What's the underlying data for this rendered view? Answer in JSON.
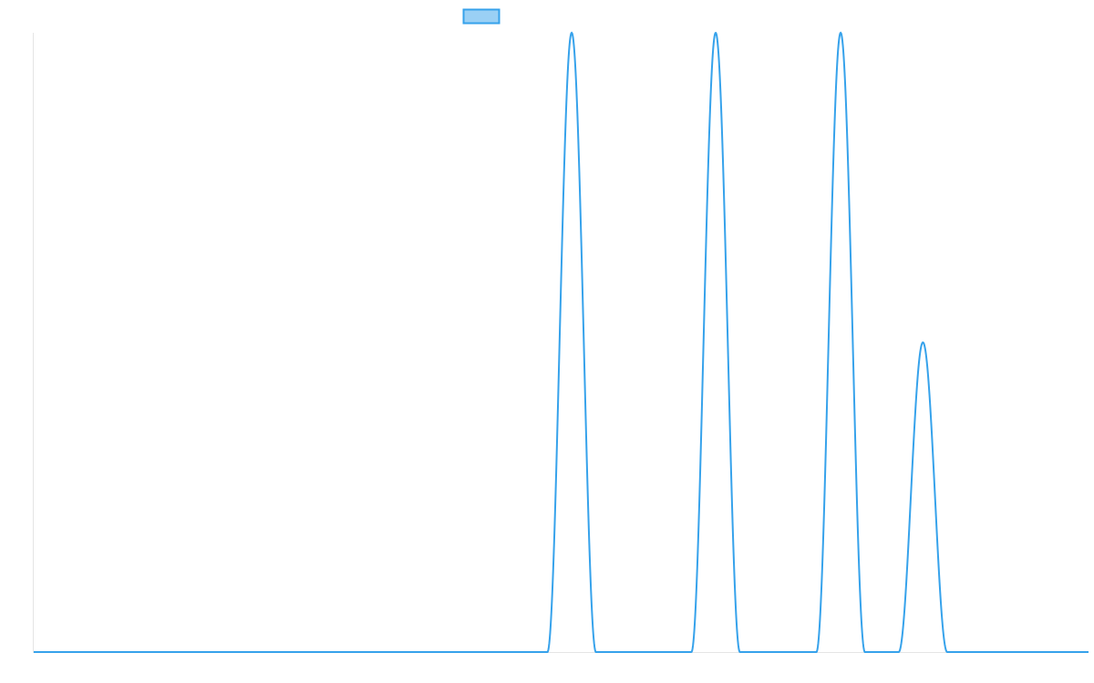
{
  "chart_data": {
    "type": "line",
    "title": "",
    "xlabel": "",
    "ylabel": "",
    "xlim": [
      0,
      100
    ],
    "ylim": [
      0,
      1
    ],
    "grid": false,
    "legend": {
      "placement": "top-center",
      "entries": [
        {
          "label": "",
          "color": "#36A2EB",
          "fill": "#9AD0F5"
        }
      ]
    },
    "series": [
      {
        "name": "",
        "color": "#36A2EB",
        "baseline": 0,
        "peaks": [
          {
            "center": 51.0,
            "halfwidth": 2.0,
            "height": 1.0
          },
          {
            "center": 64.65,
            "halfwidth": 2.0,
            "height": 1.0
          },
          {
            "center": 76.5,
            "halfwidth": 2.0,
            "height": 1.0
          },
          {
            "center": 84.3,
            "halfwidth": 2.0,
            "height": 0.5
          }
        ]
      }
    ]
  }
}
